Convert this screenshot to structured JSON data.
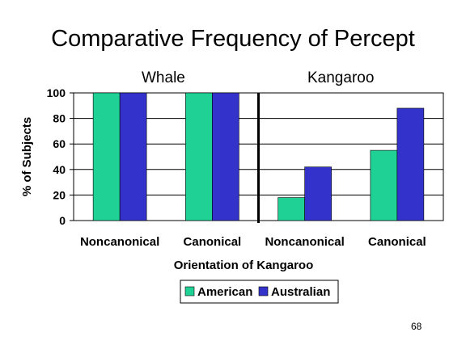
{
  "title": "Comparative Frequency of Percept",
  "groups": [
    {
      "label": "Whale"
    },
    {
      "label": "Kangaroo"
    }
  ],
  "page_number": "68",
  "chart_data": {
    "type": "bar",
    "title": "Comparative Frequency of Percept",
    "xlabel": "Orientation of Kangaroo",
    "ylabel": "% of Subjects",
    "ylim": [
      0,
      100
    ],
    "yticks": [
      0,
      20,
      40,
      60,
      80,
      100
    ],
    "grid": true,
    "legend_position": "bottom",
    "categories": [
      "Noncanonical",
      "Canonical",
      "Noncanonical",
      "Canonical"
    ],
    "group_labels": [
      "Whale",
      "Kangaroo"
    ],
    "series": [
      {
        "name": "American",
        "color": "#1fd195",
        "values": [
          100,
          100,
          18,
          55
        ]
      },
      {
        "name": "Australian",
        "color": "#3333cc",
        "values": [
          100,
          100,
          42,
          88
        ]
      }
    ]
  }
}
